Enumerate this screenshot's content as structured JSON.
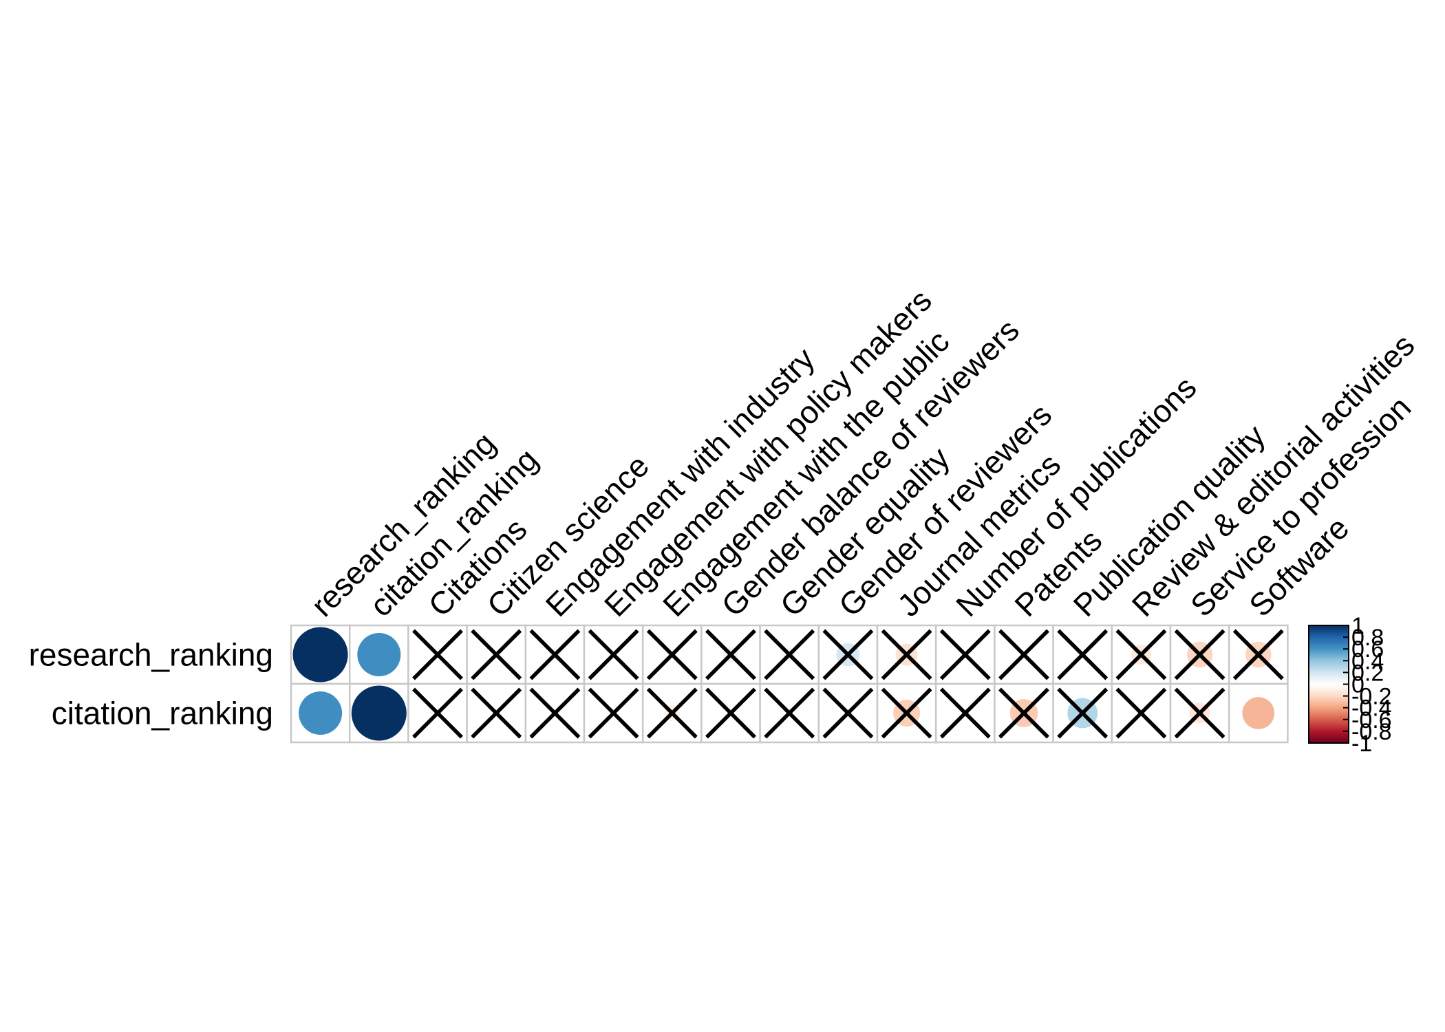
{
  "chart_data": {
    "type": "heatmap",
    "method": "circle",
    "rows": [
      "research_ranking",
      "citation_ranking"
    ],
    "columns": [
      "research_ranking",
      "citation_ranking",
      "Citations",
      "Citizen science",
      "Engagement with industry",
      "Engagement with policy makers",
      "Engagement with the public",
      "Gender balance of reviewers",
      "Gender equality",
      "Gender of reviewers",
      "Journal metrics",
      "Number of publications",
      "Patents",
      "Publication quality",
      "Review & editorial activities",
      "Service to profession",
      "Software"
    ],
    "values": [
      [
        1.0,
        0.62,
        0.02,
        0.0,
        -0.05,
        0.0,
        0.01,
        0.08,
        0.06,
        0.18,
        -0.16,
        0.01,
        0.0,
        0.01,
        -0.13,
        -0.22,
        -0.22
      ],
      [
        0.62,
        1.0,
        0.04,
        0.01,
        -0.01,
        0.01,
        -0.08,
        0.01,
        0.0,
        0.03,
        -0.24,
        0.03,
        -0.26,
        0.3,
        0.01,
        -0.14,
        -0.34
      ]
    ],
    "insignificant": [
      [
        false,
        false,
        true,
        true,
        true,
        true,
        true,
        true,
        true,
        true,
        true,
        true,
        true,
        true,
        true,
        true,
        true
      ],
      [
        false,
        false,
        true,
        true,
        true,
        true,
        true,
        true,
        true,
        true,
        true,
        true,
        true,
        true,
        true,
        true,
        false
      ]
    ],
    "color_scale": {
      "min": -1,
      "max": 1,
      "palette": [
        "#67001F",
        "#B2182B",
        "#D6604D",
        "#F4A582",
        "#FDDBC7",
        "#FFFFFF",
        "#D1E5F0",
        "#92C5DE",
        "#4393C3",
        "#2166AC",
        "#053061"
      ]
    },
    "legend_labels": [
      "1",
      "0.8",
      "0.6",
      "0.4",
      "0.2",
      "0",
      "-0.2",
      "-0.4",
      "-0.6",
      "-0.8",
      "-1"
    ],
    "legend_values": [
      1,
      0.8,
      0.6,
      0.4,
      0.2,
      0,
      -0.2,
      -0.4,
      -0.6,
      -0.8,
      -1
    ],
    "grid": true,
    "legend_position": "right"
  }
}
